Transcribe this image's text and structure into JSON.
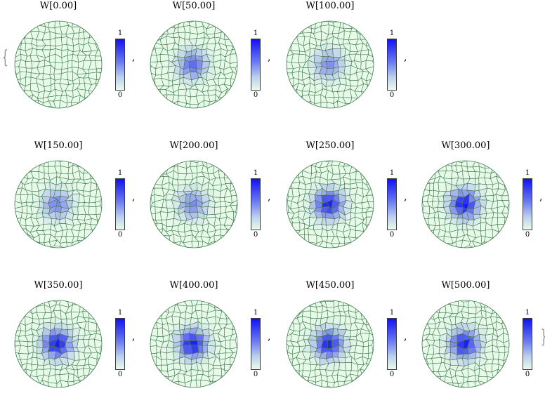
{
  "brace_open": "{",
  "brace_close": "}",
  "separator": ",",
  "cell_fill": "#e8fbe8",
  "cell_stroke": "#3f7a50",
  "peak_color": "#0b0bf5",
  "legend_max": "1",
  "legend_min": "0",
  "panels": [
    {
      "title": "W[0.00]",
      "peak": 0.0
    },
    {
      "title": "W[50.00]",
      "peak": 0.6
    },
    {
      "title": "W[100.00]",
      "peak": 0.45
    },
    {
      "title": "W[150.00]",
      "peak": 0.5
    },
    {
      "title": "W[200.00]",
      "peak": 0.48
    },
    {
      "title": "W[250.00]",
      "peak": 0.92
    },
    {
      "title": "W[300.00]",
      "peak": 0.95
    },
    {
      "title": "W[350.00]",
      "peak": 0.95
    },
    {
      "title": "W[400.00]",
      "peak": 0.93
    },
    {
      "title": "W[450.00]",
      "peak": 0.9
    },
    {
      "title": "W[500.00]",
      "peak": 0.92
    }
  ]
}
